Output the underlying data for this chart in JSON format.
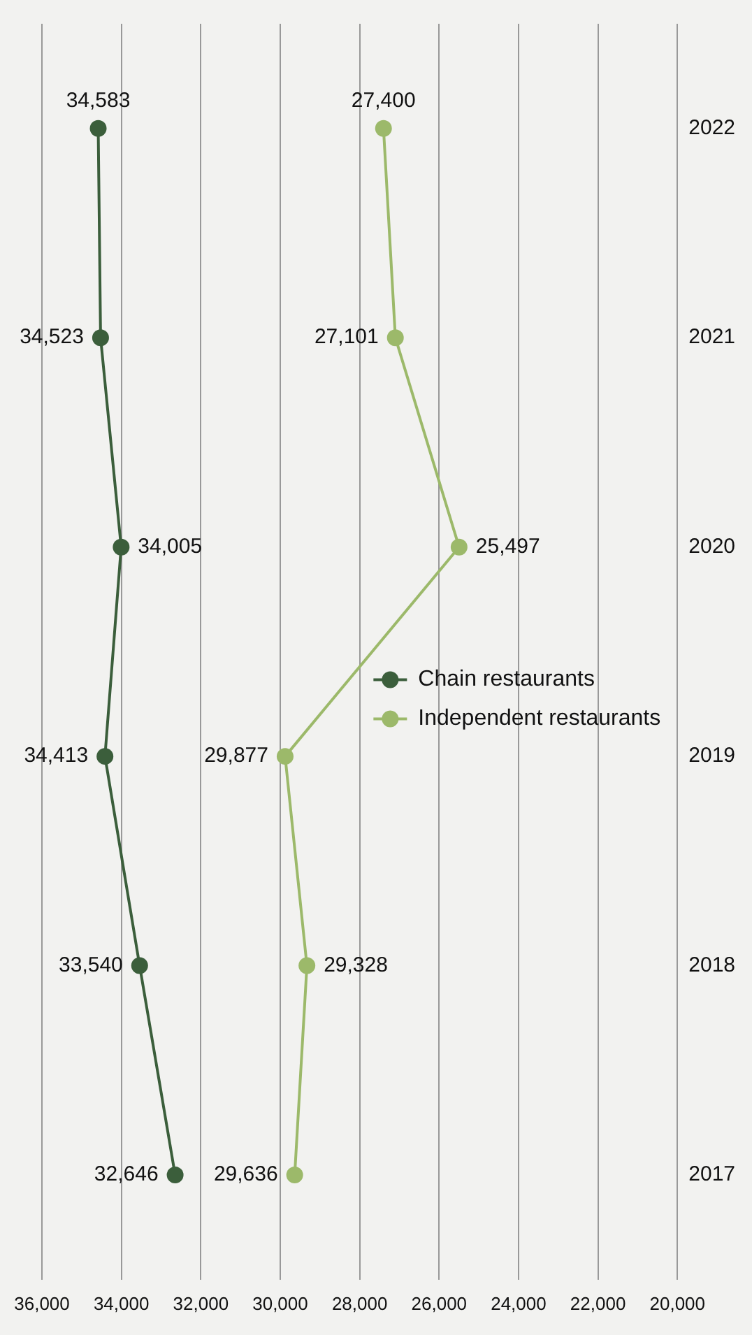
{
  "chart_data": {
    "type": "line",
    "orientation": "horizontal",
    "categories": [
      "2022",
      "2021",
      "2020",
      "2019",
      "2018",
      "2017"
    ],
    "series": [
      {
        "name": "Chain restaurants",
        "color": "#3b5e3b",
        "values": [
          34583,
          34523,
          34005,
          34413,
          33540,
          32646
        ],
        "value_labels": [
          "34,583",
          "34,523",
          "34,005",
          "34,413",
          "33,540",
          "32,646"
        ]
      },
      {
        "name": "Independent restaurants",
        "color": "#9cb96a",
        "values": [
          27400,
          27101,
          25497,
          29877,
          29328,
          29636
        ],
        "value_labels": [
          "27,400",
          "27,101",
          "25,497",
          "29,877",
          "29,328",
          "29,636"
        ]
      }
    ],
    "xlim": [
      36000,
      20000
    ],
    "xticks": [
      {
        "value": 36000,
        "label": "36,000"
      },
      {
        "value": 34000,
        "label": "34,000"
      },
      {
        "value": 32000,
        "label": "32,000"
      },
      {
        "value": 30000,
        "label": "30,000"
      },
      {
        "value": 28000,
        "label": "28,000"
      },
      {
        "value": 26000,
        "label": "26,000"
      },
      {
        "value": 24000,
        "label": "24,000"
      },
      {
        "value": 22000,
        "label": "22,000"
      },
      {
        "value": 20000,
        "label": "20,000"
      }
    ],
    "grid": "x",
    "legend": "right",
    "marker": "circle",
    "line_style": "solid"
  }
}
